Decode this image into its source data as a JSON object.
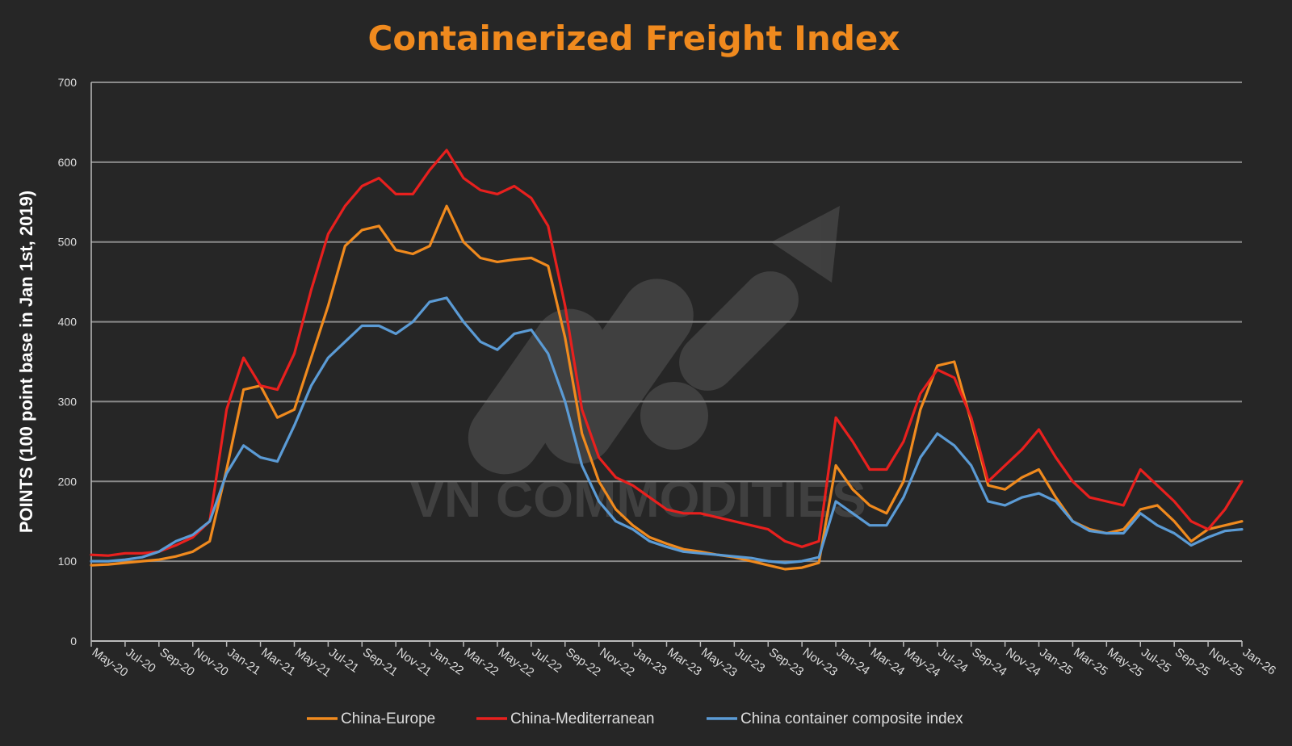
{
  "chart_data": {
    "type": "line",
    "title": "Containerized Freight Index",
    "ylabel": "POINTS (100 point base in Jan 1st, 2019)",
    "xlabel": "",
    "ylim": [
      0,
      700
    ],
    "yticks": [
      0,
      100,
      200,
      300,
      400,
      500,
      600,
      700
    ],
    "x_start": "May-20",
    "x_end": "Jan-26",
    "tick_labels": [
      "May-20",
      "Jul-20",
      "Sep-20",
      "Nov-20",
      "Jan-21",
      "Mar-21",
      "May-21",
      "Jul-21",
      "Sep-21",
      "Nov-21",
      "Jan-22",
      "Mar-22",
      "May-22",
      "Jul-22",
      "Sep-22",
      "Nov-22",
      "Jan-23",
      "Mar-23",
      "May-23",
      "Jul-23",
      "Sep-23",
      "Nov-23",
      "Jan-24",
      "Mar-24",
      "May-24",
      "Jul-24",
      "Sep-24",
      "Nov-24",
      "Jan-25",
      "Mar-25",
      "May-25",
      "Jul-25",
      "Sep-25",
      "Nov-25",
      "Jan-26"
    ],
    "grid": true,
    "legend_position": "bottom",
    "watermark": "VN COMMODITIES",
    "series": [
      {
        "name": "China-Europe",
        "color": "#f08a1e",
        "x": [
          "May-20",
          "Jun-20",
          "Jul-20",
          "Aug-20",
          "Sep-20",
          "Oct-20",
          "Nov-20",
          "Dec-20",
          "Jan-21",
          "Feb-21",
          "Mar-21",
          "Apr-21",
          "May-21",
          "Jun-21",
          "Jul-21",
          "Aug-21",
          "Sep-21",
          "Oct-21",
          "Nov-21",
          "Dec-21",
          "Jan-22",
          "Feb-22",
          "Mar-22",
          "Apr-22",
          "May-22",
          "Jun-22",
          "Jul-22",
          "Aug-22",
          "Sep-22",
          "Oct-22",
          "Nov-22",
          "Dec-22",
          "Jan-23",
          "Feb-23",
          "Mar-23",
          "Apr-23",
          "May-23",
          "Jun-23",
          "Jul-23",
          "Aug-23",
          "Sep-23",
          "Oct-23",
          "Nov-23",
          "Dec-23",
          "Jan-24",
          "Feb-24",
          "Mar-24",
          "Apr-24",
          "May-24",
          "Jun-24",
          "Jul-24",
          "Aug-24",
          "Sep-24",
          "Oct-24",
          "Nov-24",
          "Dec-24",
          "Jan-25",
          "Feb-25",
          "Mar-25",
          "Apr-25",
          "May-25",
          "Jun-25",
          "Jul-25",
          "Aug-25",
          "Sep-25",
          "Oct-25",
          "Nov-25",
          "Dec-25",
          "Jan-26"
        ],
        "y": [
          95,
          96,
          98,
          100,
          102,
          106,
          112,
          125,
          215,
          315,
          320,
          280,
          290,
          355,
          420,
          495,
          515,
          520,
          490,
          485,
          495,
          545,
          500,
          480,
          475,
          478,
          480,
          470,
          380,
          260,
          200,
          165,
          145,
          130,
          122,
          115,
          112,
          108,
          105,
          100,
          95,
          90,
          92,
          98,
          220,
          190,
          170,
          160,
          200,
          290,
          345,
          350,
          275,
          195,
          190,
          205,
          215,
          180,
          150,
          140,
          135,
          140,
          165,
          170,
          150,
          125,
          140,
          145,
          150
        ]
      },
      {
        "name": "China-Mediterranean",
        "color": "#e8201e",
        "x": [
          "May-20",
          "Jun-20",
          "Jul-20",
          "Aug-20",
          "Sep-20",
          "Oct-20",
          "Nov-20",
          "Dec-20",
          "Jan-21",
          "Feb-21",
          "Mar-21",
          "Apr-21",
          "May-21",
          "Jun-21",
          "Jul-21",
          "Aug-21",
          "Sep-21",
          "Oct-21",
          "Nov-21",
          "Dec-21",
          "Jan-22",
          "Feb-22",
          "Mar-22",
          "Apr-22",
          "May-22",
          "Jun-22",
          "Jul-22",
          "Aug-22",
          "Sep-22",
          "Oct-22",
          "Nov-22",
          "Dec-22",
          "Jan-23",
          "Feb-23",
          "Mar-23",
          "Apr-23",
          "May-23",
          "Jun-23",
          "Jul-23",
          "Aug-23",
          "Sep-23",
          "Oct-23",
          "Nov-23",
          "Dec-23",
          "Jan-24",
          "Feb-24",
          "Mar-24",
          "Apr-24",
          "May-24",
          "Jun-24",
          "Jul-24",
          "Aug-24",
          "Sep-24",
          "Oct-24",
          "Nov-24",
          "Dec-24",
          "Jan-25",
          "Feb-25",
          "Mar-25",
          "Apr-25",
          "May-25",
          "Jun-25",
          "Jul-25",
          "Aug-25",
          "Sep-25",
          "Oct-25",
          "Nov-25",
          "Dec-25",
          "Jan-26"
        ],
        "y": [
          108,
          107,
          110,
          110,
          112,
          120,
          130,
          150,
          290,
          355,
          320,
          315,
          360,
          440,
          510,
          545,
          570,
          580,
          560,
          560,
          590,
          615,
          580,
          565,
          560,
          570,
          555,
          520,
          420,
          290,
          230,
          205,
          195,
          180,
          165,
          160,
          160,
          155,
          150,
          145,
          140,
          125,
          118,
          125,
          280,
          250,
          215,
          215,
          250,
          310,
          340,
          330,
          280,
          200,
          220,
          240,
          265,
          230,
          200,
          180,
          175,
          170,
          215,
          195,
          175,
          150,
          140,
          165,
          200
        ]
      },
      {
        "name": "China container composite index",
        "color": "#5b9bd5",
        "x": [
          "May-20",
          "Jun-20",
          "Jul-20",
          "Aug-20",
          "Sep-20",
          "Oct-20",
          "Nov-20",
          "Dec-20",
          "Jan-21",
          "Feb-21",
          "Mar-21",
          "Apr-21",
          "May-21",
          "Jun-21",
          "Jul-21",
          "Aug-21",
          "Sep-21",
          "Oct-21",
          "Nov-21",
          "Dec-21",
          "Jan-22",
          "Feb-22",
          "Mar-22",
          "Apr-22",
          "May-22",
          "Jun-22",
          "Jul-22",
          "Aug-22",
          "Sep-22",
          "Oct-22",
          "Nov-22",
          "Dec-22",
          "Jan-23",
          "Feb-23",
          "Mar-23",
          "Apr-23",
          "May-23",
          "Jun-23",
          "Jul-23",
          "Aug-23",
          "Sep-23",
          "Oct-23",
          "Nov-23",
          "Dec-23",
          "Jan-24",
          "Feb-24",
          "Mar-24",
          "Apr-24",
          "May-24",
          "Jun-24",
          "Jul-24",
          "Aug-24",
          "Sep-24",
          "Oct-24",
          "Nov-24",
          "Dec-24",
          "Jan-25",
          "Feb-25",
          "Mar-25",
          "Apr-25",
          "May-25",
          "Jun-25",
          "Jul-25",
          "Aug-25",
          "Sep-25",
          "Oct-25",
          "Nov-25",
          "Dec-25",
          "Jan-26"
        ],
        "y": [
          100,
          100,
          102,
          105,
          112,
          125,
          133,
          150,
          210,
          245,
          230,
          225,
          270,
          320,
          355,
          375,
          395,
          395,
          385,
          400,
          425,
          430,
          400,
          375,
          365,
          385,
          390,
          360,
          300,
          220,
          175,
          150,
          140,
          125,
          118,
          112,
          110,
          108,
          106,
          104,
          100,
          98,
          100,
          105,
          175,
          160,
          145,
          145,
          180,
          230,
          260,
          245,
          220,
          175,
          170,
          180,
          185,
          175,
          150,
          138,
          135,
          135,
          160,
          145,
          135,
          120,
          130,
          138,
          140
        ]
      }
    ]
  }
}
